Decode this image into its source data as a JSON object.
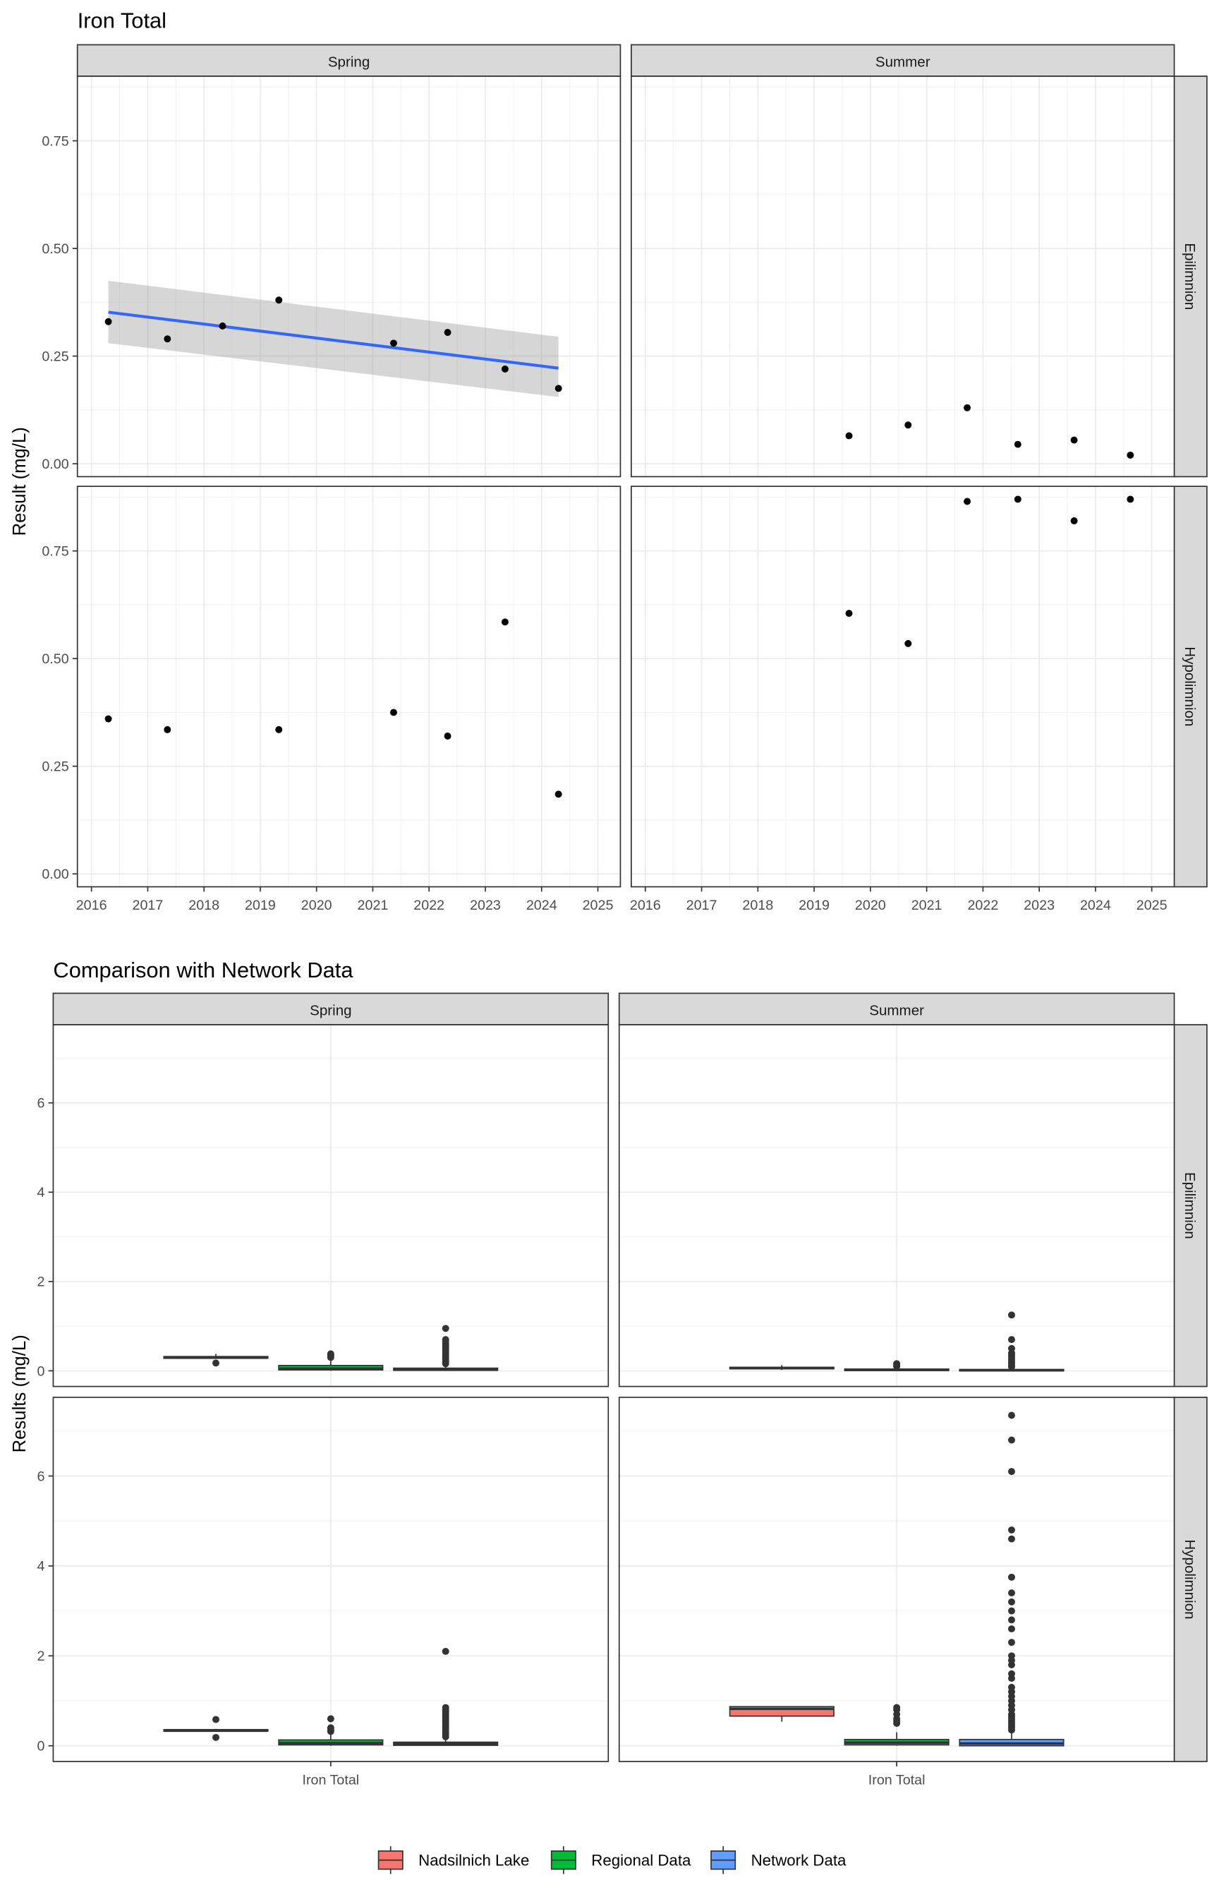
{
  "chart_data": [
    {
      "type": "scatter",
      "title": "Iron Total",
      "xlabel": "",
      "ylabel": "Result (mg/L)",
      "facet_cols": [
        "Spring",
        "Summer"
      ],
      "facet_rows": [
        "Epilimnion",
        "Hypolimnion"
      ],
      "xlim": [
        2015.75,
        2025.4
      ],
      "ylim": [
        -0.03,
        0.9
      ],
      "x_ticks": [
        2016,
        2017,
        2018,
        2019,
        2020,
        2021,
        2022,
        2023,
        2024,
        2025
      ],
      "y_ticks": [
        0.0,
        0.25,
        0.5,
        0.75
      ],
      "y_tick_labels": [
        "0.00",
        "0.25",
        "0.50",
        "0.75"
      ],
      "grid": true,
      "panels": [
        {
          "col": "Spring",
          "row": "Epilimnion",
          "points": [
            {
              "x": 2016.3,
              "y": 0.33
            },
            {
              "x": 2017.35,
              "y": 0.29
            },
            {
              "x": 2018.33,
              "y": 0.32
            },
            {
              "x": 2019.33,
              "y": 0.38
            },
            {
              "x": 2021.37,
              "y": 0.28
            },
            {
              "x": 2022.33,
              "y": 0.305
            },
            {
              "x": 2023.35,
              "y": 0.22
            },
            {
              "x": 2024.3,
              "y": 0.175
            }
          ],
          "trend": {
            "x": [
              2016.3,
              2024.3
            ],
            "y": [
              0.352,
              0.222
            ],
            "ci_upper": [
              0.425,
              0.295
            ],
            "ci_lower": [
              0.28,
              0.155
            ],
            "color": "#3366ff"
          }
        },
        {
          "col": "Summer",
          "row": "Epilimnion",
          "points": [
            {
              "x": 2019.62,
              "y": 0.065
            },
            {
              "x": 2020.67,
              "y": 0.09
            },
            {
              "x": 2021.72,
              "y": 0.13
            },
            {
              "x": 2022.62,
              "y": 0.045
            },
            {
              "x": 2023.62,
              "y": 0.055
            },
            {
              "x": 2024.62,
              "y": 0.02
            }
          ]
        },
        {
          "col": "Spring",
          "row": "Hypolimnion",
          "points": [
            {
              "x": 2016.3,
              "y": 0.36
            },
            {
              "x": 2017.35,
              "y": 0.335
            },
            {
              "x": 2019.33,
              "y": 0.335
            },
            {
              "x": 2021.37,
              "y": 0.375
            },
            {
              "x": 2022.33,
              "y": 0.32
            },
            {
              "x": 2023.35,
              "y": 0.585
            },
            {
              "x": 2024.3,
              "y": 0.185
            }
          ]
        },
        {
          "col": "Summer",
          "row": "Hypolimnion",
          "points": [
            {
              "x": 2019.62,
              "y": 0.605
            },
            {
              "x": 2020.67,
              "y": 0.535
            },
            {
              "x": 2021.72,
              "y": 0.865
            },
            {
              "x": 2022.62,
              "y": 0.87
            },
            {
              "x": 2023.62,
              "y": 0.82
            },
            {
              "x": 2024.62,
              "y": 0.87
            }
          ]
        }
      ]
    },
    {
      "type": "box",
      "title": "Comparison with Network Data",
      "xlabel": "",
      "ylabel": "Results (mg/L)",
      "facet_cols": [
        "Spring",
        "Summer"
      ],
      "facet_rows": [
        "Epilimnion",
        "Hypolimnion"
      ],
      "categories": [
        "Iron Total"
      ],
      "ylim": [
        -0.35,
        7.75
      ],
      "y_ticks": [
        0,
        2,
        4,
        6
      ],
      "y_tick_labels": [
        "0",
        "2",
        "4",
        "6"
      ],
      "grid": true,
      "legend": {
        "placement": "bottom",
        "entries": [
          {
            "name": "Nadsilnich Lake",
            "color": "#f8766d"
          },
          {
            "name": "Regional Data",
            "color": "#00ba38"
          },
          {
            "name": "Network Data",
            "color": "#619cff"
          }
        ]
      },
      "panels": [
        {
          "col": "Spring",
          "row": "Epilimnion",
          "boxes": [
            {
              "group": "Nadsilnich Lake",
              "q1": 0.28,
              "median": 0.3,
              "q3": 0.32,
              "whisker_low": 0.28,
              "whisker_high": 0.38,
              "outliers": [
                0.175
              ]
            },
            {
              "group": "Regional Data",
              "q1": 0.02,
              "median": 0.05,
              "q3": 0.12,
              "whisker_low": 0.0,
              "whisker_high": 0.25,
              "outliers": [
                0.3,
                0.33,
                0.36,
                0.38
              ]
            },
            {
              "group": "Network Data",
              "q1": 0.01,
              "median": 0.03,
              "q3": 0.06,
              "whisker_low": 0.0,
              "whisker_high": 0.12,
              "outliers": [
                0.16,
                0.2,
                0.25,
                0.3,
                0.35,
                0.4,
                0.45,
                0.5,
                0.55,
                0.6,
                0.65,
                0.7,
                0.95
              ]
            }
          ]
        },
        {
          "col": "Summer",
          "row": "Epilimnion",
          "boxes": [
            {
              "group": "Nadsilnich Lake",
              "q1": 0.045,
              "median": 0.06,
              "q3": 0.08,
              "whisker_low": 0.02,
              "whisker_high": 0.13,
              "outliers": []
            },
            {
              "group": "Regional Data",
              "q1": 0.005,
              "median": 0.02,
              "q3": 0.04,
              "whisker_low": 0.0,
              "whisker_high": 0.08,
              "outliers": [
                0.1,
                0.12,
                0.14,
                0.16
              ]
            },
            {
              "group": "Network Data",
              "q1": 0.005,
              "median": 0.015,
              "q3": 0.03,
              "whisker_low": 0.0,
              "whisker_high": 0.06,
              "outliers": [
                0.09,
                0.12,
                0.16,
                0.2,
                0.25,
                0.3,
                0.35,
                0.4,
                0.5,
                0.7,
                1.25
              ]
            }
          ]
        },
        {
          "col": "Spring",
          "row": "Hypolimnion",
          "boxes": [
            {
              "group": "Nadsilnich Lake",
              "q1": 0.325,
              "median": 0.335,
              "q3": 0.36,
              "whisker_low": 0.32,
              "whisker_high": 0.375,
              "outliers": [
                0.185,
                0.585
              ]
            },
            {
              "group": "Regional Data",
              "q1": 0.02,
              "median": 0.06,
              "q3": 0.13,
              "whisker_low": 0.0,
              "whisker_high": 0.28,
              "outliers": [
                0.32,
                0.36,
                0.4,
                0.6
              ]
            },
            {
              "group": "Network Data",
              "q1": 0.01,
              "median": 0.04,
              "q3": 0.08,
              "whisker_low": 0.0,
              "whisker_high": 0.15,
              "outliers": [
                0.2,
                0.25,
                0.3,
                0.35,
                0.4,
                0.45,
                0.5,
                0.55,
                0.6,
                0.65,
                0.7,
                0.75,
                0.8,
                0.85,
                2.1
              ]
            }
          ]
        },
        {
          "col": "Summer",
          "row": "Hypolimnion",
          "boxes": [
            {
              "group": "Nadsilnich Lake",
              "q1": 0.66,
              "median": 0.82,
              "q3": 0.87,
              "whisker_low": 0.535,
              "whisker_high": 0.87,
              "outliers": []
            },
            {
              "group": "Regional Data",
              "q1": 0.02,
              "median": 0.07,
              "q3": 0.14,
              "whisker_low": 0.0,
              "whisker_high": 0.3,
              "outliers": [
                0.5,
                0.55,
                0.6,
                0.7,
                0.8,
                0.85
              ]
            },
            {
              "group": "Network Data",
              "q1": 0.0,
              "median": 0.05,
              "q3": 0.14,
              "whisker_low": 0.0,
              "whisker_high": 0.3,
              "outliers": [
                0.35,
                0.4,
                0.45,
                0.5,
                0.55,
                0.6,
                0.65,
                0.7,
                0.8,
                0.9,
                1.0,
                1.1,
                1.2,
                1.3,
                1.5,
                1.6,
                1.8,
                1.9,
                2.0,
                2.3,
                2.6,
                2.8,
                3.0,
                3.2,
                3.4,
                3.75,
                4.6,
                4.8,
                6.1,
                6.8,
                7.35
              ]
            }
          ]
        }
      ]
    }
  ]
}
